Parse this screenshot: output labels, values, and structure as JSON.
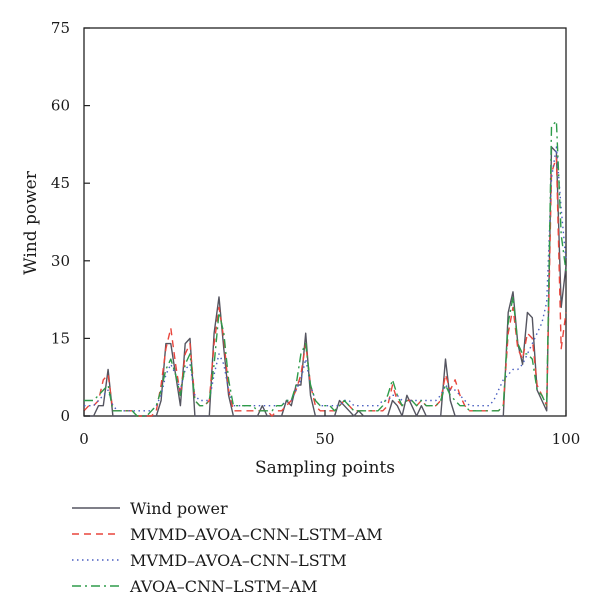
{
  "chart_data": {
    "type": "line",
    "title": "",
    "xlabel": "Sampling points",
    "ylabel": "Wind power",
    "xlim": [
      0,
      100
    ],
    "ylim": [
      0,
      75
    ],
    "x_ticks": [
      0,
      50,
      100
    ],
    "y_ticks": [
      0,
      15,
      30,
      45,
      60,
      75
    ],
    "x_tick_labels": [
      "0",
      "50",
      "100"
    ],
    "y_tick_labels": [
      "0",
      "15",
      "30",
      "45",
      "60",
      "75"
    ],
    "grid": false,
    "legend_position": "bottom",
    "series": [
      {
        "name": "Wind power",
        "color": "#555560",
        "dash": "solid",
        "x": [
          0,
          1,
          2,
          3,
          4,
          5,
          6,
          7,
          8,
          9,
          10,
          11,
          12,
          13,
          14,
          15,
          16,
          17,
          18,
          19,
          20,
          21,
          22,
          23,
          24,
          25,
          26,
          27,
          28,
          29,
          30,
          31,
          32,
          33,
          34,
          35,
          36,
          37,
          38,
          39,
          40,
          41,
          42,
          43,
          44,
          45,
          46,
          47,
          48,
          49,
          50,
          51,
          52,
          53,
          54,
          55,
          56,
          57,
          58,
          59,
          60,
          61,
          62,
          63,
          64,
          65,
          66,
          67,
          68,
          69,
          70,
          71,
          72,
          73,
          74,
          75,
          76,
          77,
          78,
          79,
          80,
          81,
          82,
          83,
          84,
          85,
          86,
          87,
          88,
          89,
          90,
          91,
          92,
          93,
          94,
          95,
          96,
          97,
          98,
          99,
          100
        ],
        "values": [
          0,
          0,
          0,
          2,
          2,
          9,
          0,
          0,
          0,
          0,
          0,
          0,
          0,
          0,
          0,
          0,
          3,
          14,
          14,
          8,
          2,
          14,
          15,
          0,
          0,
          0,
          0,
          16,
          23,
          13,
          4,
          0,
          0,
          0,
          0,
          0,
          0,
          2,
          0,
          0,
          0,
          0,
          3,
          2,
          6,
          6,
          16,
          4,
          0,
          0,
          0,
          0,
          0,
          3,
          2,
          1,
          0,
          1,
          0,
          0,
          0,
          0,
          0,
          0,
          3,
          2,
          0,
          4,
          2,
          0,
          2,
          0,
          0,
          0,
          0,
          11,
          3,
          0,
          0,
          0,
          0,
          0,
          0,
          0,
          0,
          0,
          0,
          0,
          20,
          24,
          14,
          10,
          20,
          19,
          5,
          3,
          1,
          52,
          51,
          21,
          29
        ]
      },
      {
        "name": "MVMD–AVOA–CNN–LSTM–AM",
        "color": "#e8453c",
        "dash": "dashed",
        "x": [
          0,
          1,
          2,
          3,
          4,
          5,
          6,
          7,
          8,
          9,
          10,
          11,
          12,
          13,
          14,
          15,
          16,
          17,
          18,
          19,
          20,
          21,
          22,
          23,
          24,
          25,
          26,
          27,
          28,
          29,
          30,
          31,
          32,
          33,
          34,
          35,
          36,
          37,
          38,
          39,
          40,
          41,
          42,
          43,
          44,
          45,
          46,
          47,
          48,
          49,
          50,
          51,
          52,
          53,
          54,
          55,
          56,
          57,
          58,
          59,
          60,
          61,
          62,
          63,
          64,
          65,
          66,
          67,
          68,
          69,
          70,
          71,
          72,
          73,
          74,
          75,
          76,
          77,
          78,
          79,
          80,
          81,
          82,
          83,
          84,
          85,
          86,
          87,
          88,
          89,
          90,
          91,
          92,
          93,
          94,
          95,
          96,
          97,
          98,
          99,
          100
        ],
        "values": [
          1,
          2,
          2,
          3,
          7,
          8,
          1,
          1,
          1,
          1,
          1,
          0,
          0,
          0,
          0,
          1,
          6,
          13,
          17,
          10,
          4,
          12,
          14,
          3,
          2,
          2,
          3,
          14,
          21,
          15,
          5,
          1,
          1,
          1,
          1,
          1,
          1,
          1,
          1,
          0,
          1,
          1,
          2,
          3,
          5,
          8,
          14,
          6,
          2,
          1,
          1,
          1,
          1,
          2,
          3,
          2,
          1,
          1,
          1,
          1,
          1,
          1,
          1,
          2,
          6,
          3,
          2,
          3,
          3,
          2,
          3,
          2,
          2,
          2,
          3,
          8,
          5,
          7,
          4,
          2,
          1,
          1,
          1,
          1,
          1,
          1,
          1,
          2,
          16,
          21,
          13,
          11,
          16,
          15,
          6,
          4,
          2,
          47,
          50,
          13,
          20
        ]
      },
      {
        "name": "MVMD–AVOA–CNN–LSTM",
        "color": "#4a5fc1",
        "dash": "dotted",
        "x": [
          0,
          1,
          2,
          3,
          4,
          5,
          6,
          7,
          8,
          9,
          10,
          11,
          12,
          13,
          14,
          15,
          16,
          17,
          18,
          19,
          20,
          21,
          22,
          23,
          24,
          25,
          26,
          27,
          28,
          29,
          30,
          31,
          32,
          33,
          34,
          35,
          36,
          37,
          38,
          39,
          40,
          41,
          42,
          43,
          44,
          45,
          46,
          47,
          48,
          49,
          50,
          51,
          52,
          53,
          54,
          55,
          56,
          57,
          58,
          59,
          60,
          61,
          62,
          63,
          64,
          65,
          66,
          67,
          68,
          69,
          70,
          71,
          72,
          73,
          74,
          75,
          76,
          77,
          78,
          79,
          80,
          81,
          82,
          83,
          84,
          85,
          86,
          87,
          88,
          89,
          90,
          91,
          92,
          93,
          94,
          95,
          96,
          97,
          98,
          99,
          100
        ],
        "values": [
          2,
          2,
          2,
          3,
          4,
          5,
          2,
          1,
          1,
          1,
          1,
          1,
          1,
          1,
          1,
          2,
          4,
          8,
          10,
          8,
          5,
          9,
          10,
          4,
          3,
          3,
          3,
          8,
          12,
          10,
          5,
          2,
          2,
          2,
          2,
          2,
          2,
          2,
          2,
          2,
          2,
          2,
          3,
          3,
          5,
          7,
          11,
          6,
          3,
          2,
          2,
          2,
          2,
          2,
          3,
          3,
          2,
          2,
          2,
          2,
          2,
          2,
          3,
          3,
          4,
          4,
          3,
          3,
          3,
          3,
          3,
          3,
          3,
          3,
          4,
          6,
          5,
          5,
          4,
          3,
          2,
          2,
          2,
          2,
          2,
          3,
          5,
          7,
          8,
          9,
          9,
          10,
          12,
          14,
          16,
          18,
          22,
          46,
          52,
          40,
          30
        ]
      },
      {
        "name": "AVOA–CNN–LSTM–AM",
        "color": "#2e9b4a",
        "dash": "dashdot",
        "x": [
          0,
          1,
          2,
          3,
          4,
          5,
          6,
          7,
          8,
          9,
          10,
          11,
          12,
          13,
          14,
          15,
          16,
          17,
          18,
          19,
          20,
          21,
          22,
          23,
          24,
          25,
          26,
          27,
          28,
          29,
          30,
          31,
          32,
          33,
          34,
          35,
          36,
          37,
          38,
          39,
          40,
          41,
          42,
          43,
          44,
          45,
          46,
          47,
          48,
          49,
          50,
          51,
          52,
          53,
          54,
          55,
          56,
          57,
          58,
          59,
          60,
          61,
          62,
          63,
          64,
          65,
          66,
          67,
          68,
          69,
          70,
          71,
          72,
          73,
          74,
          75,
          76,
          77,
          78,
          79,
          80,
          81,
          82,
          83,
          84,
          85,
          86,
          87,
          88,
          89,
          90,
          91,
          92,
          93,
          94,
          95,
          96,
          97,
          98,
          99,
          100
        ],
        "values": [
          3,
          3,
          3,
          4,
          5,
          6,
          1,
          1,
          1,
          1,
          1,
          0,
          0,
          0,
          1,
          2,
          5,
          9,
          11,
          8,
          4,
          10,
          12,
          3,
          2,
          2,
          3,
          10,
          20,
          16,
          7,
          2,
          2,
          2,
          2,
          2,
          1,
          1,
          1,
          1,
          2,
          2,
          3,
          3,
          6,
          12,
          14,
          6,
          3,
          2,
          2,
          2,
          1,
          2,
          3,
          2,
          1,
          1,
          1,
          1,
          1,
          1,
          2,
          4,
          7,
          4,
          2,
          3,
          3,
          2,
          3,
          2,
          2,
          2,
          3,
          6,
          4,
          3,
          2,
          2,
          1,
          1,
          1,
          1,
          1,
          1,
          1,
          2,
          18,
          23,
          14,
          12,
          12,
          11,
          5,
          4,
          2,
          56,
          57,
          35,
          28
        ]
      }
    ]
  }
}
